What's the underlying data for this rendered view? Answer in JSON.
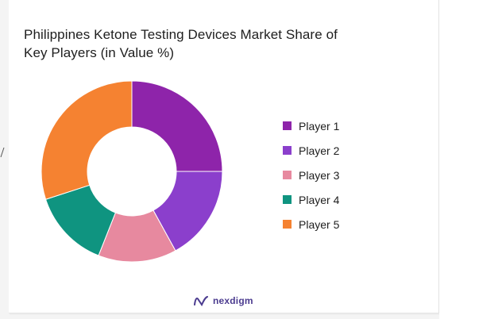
{
  "chart_data": {
    "type": "pie",
    "donut": true,
    "title": "Philippines Ketone Testing Devices Market Share of Key Players (in Value %)",
    "title_lines": [
      "Philippines Ketone Testing Devices Market Share of",
      "Key Players (in Value %)"
    ],
    "categories": [
      "Player 1",
      "Player 2",
      "Player 3",
      "Player 4",
      "Player 5"
    ],
    "values": [
      25,
      17,
      14,
      14,
      30
    ],
    "colors": [
      "#8e24aa",
      "#8b3fcc",
      "#e7899f",
      "#0f9480",
      "#f58231"
    ],
    "legend_position": "right"
  },
  "brand": {
    "name": "nexdigm",
    "color": "#4b3b8f"
  }
}
